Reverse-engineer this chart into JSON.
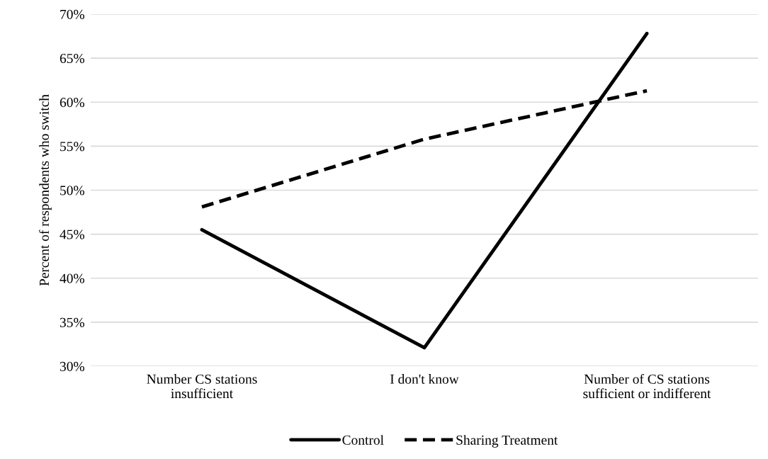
{
  "chart_data": {
    "type": "line",
    "ylabel": "Percent of respondents who switch",
    "categories": [
      "Number CS stations\ninsufficient",
      "I don't know",
      "Number of CS stations\nsufficient or indifferent"
    ],
    "series": [
      {
        "name": "Control",
        "color": "#000000",
        "line_style": "solid",
        "values": [
          45.5,
          32.1,
          67.8
        ]
      },
      {
        "name": "Sharing Treatment",
        "color": "#000000",
        "line_style": "dashed",
        "values": [
          48.1,
          55.8,
          61.3
        ]
      }
    ],
    "ylim": [
      30,
      70
    ],
    "yticks": [
      {
        "value": 30,
        "label": "30%"
      },
      {
        "value": 35,
        "label": "35%"
      },
      {
        "value": 40,
        "label": "40%"
      },
      {
        "value": 45,
        "label": "45%"
      },
      {
        "value": 50,
        "label": "50%"
      },
      {
        "value": 55,
        "label": "55%"
      },
      {
        "value": 60,
        "label": "60%"
      },
      {
        "value": 65,
        "label": "65%"
      },
      {
        "value": 70,
        "label": "70%"
      }
    ],
    "grid": "y",
    "legend": "bottom",
    "marker": "none"
  }
}
